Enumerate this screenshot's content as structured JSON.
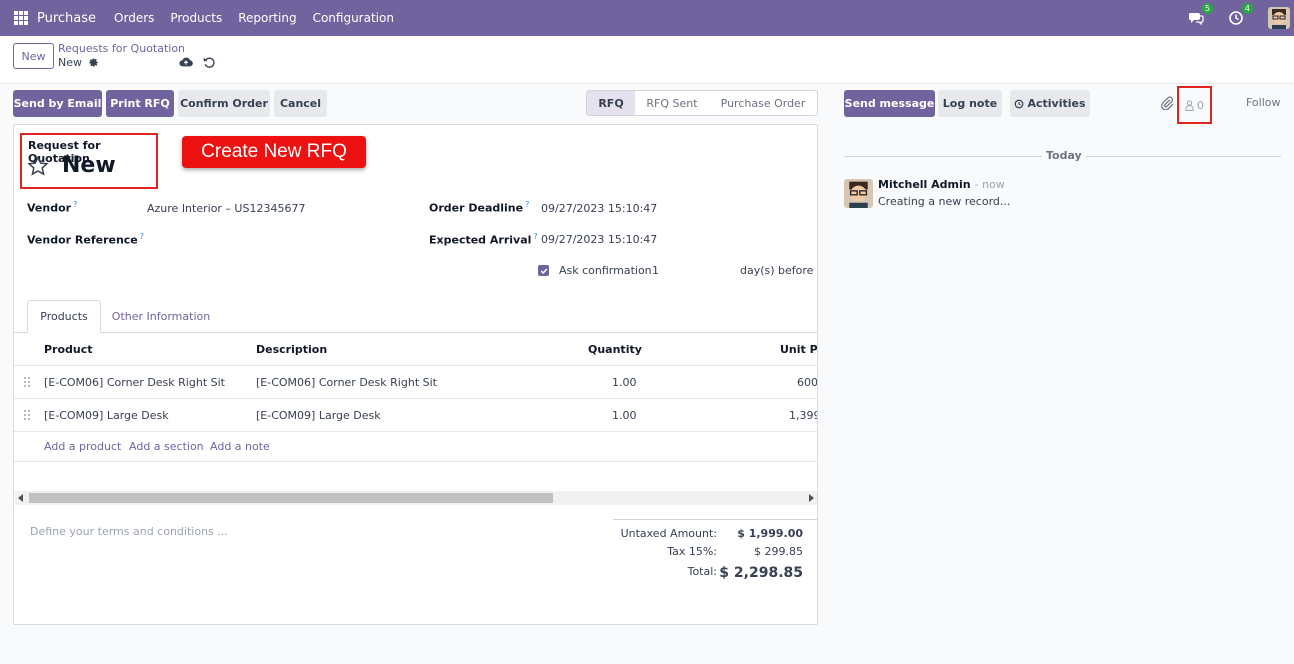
{
  "nav": {
    "app_name": "Purchase",
    "menu": [
      "Orders",
      "Products",
      "Reporting",
      "Configuration"
    ],
    "messages_badge": "5",
    "activities_badge": "4"
  },
  "control_panel": {
    "new_label": "New",
    "breadcrumb_parent": "Requests for Quotation",
    "breadcrumb_current": "New"
  },
  "actions": {
    "send_email": "Send by Email",
    "print_rfq": "Print RFQ",
    "confirm_order": "Confirm Order",
    "cancel": "Cancel"
  },
  "statusbar": [
    "RFQ",
    "RFQ Sent",
    "Purchase Order"
  ],
  "form": {
    "title_label": "Request for Quotation",
    "title_name": "New",
    "callout": "Create New RFQ",
    "vendor_label": "Vendor",
    "vendor_value": "Azure Interior – US12345677",
    "vendor_ref_label": "Vendor Reference",
    "order_deadline_label": "Order Deadline",
    "order_deadline_value": "09/27/2023 15:10:47",
    "expected_arrival_label": "Expected Arrival",
    "expected_arrival_value": "09/27/2023 15:10:47",
    "ask_confirmation_label": "Ask confirmation",
    "ask_confirmation_days": "1",
    "days_before_label": "day(s) before",
    "help_mark": "?"
  },
  "tabs": [
    "Products",
    "Other Information"
  ],
  "lines": {
    "headers": [
      "Product",
      "Description",
      "Quantity",
      "Unit Pr"
    ],
    "rows": [
      {
        "product": "[E-COM06] Corner Desk Right Sit",
        "description": "[E-COM06] Corner Desk Right Sit",
        "quantity": "1.00",
        "unit_price": "600"
      },
      {
        "product": "[E-COM09] Large Desk",
        "description": "[E-COM09] Large Desk",
        "quantity": "1.00",
        "unit_price": "1,399"
      }
    ],
    "add_product": "Add a product",
    "add_section": "Add a section",
    "add_note": "Add a note"
  },
  "terms_placeholder": "Define your terms and conditions ...",
  "totals": {
    "untaxed_label": "Untaxed Amount:",
    "untaxed_value": "$ 1,999.00",
    "tax_label": "Tax 15%:",
    "tax_value": "$ 299.85",
    "total_label": "Total:",
    "total_value": "$ 2,298.85"
  },
  "chatter": {
    "send_message": "Send message",
    "log_note": "Log note",
    "activities": "Activities",
    "followers_count": "0",
    "follow": "Follow",
    "date_separator": "Today",
    "author": "Mitchell Admin",
    "time": "- now",
    "body": "Creating a new record..."
  },
  "colors": {
    "brand": "#71639e",
    "highlight_red": "#e02424",
    "badge_green": "#28a745"
  }
}
